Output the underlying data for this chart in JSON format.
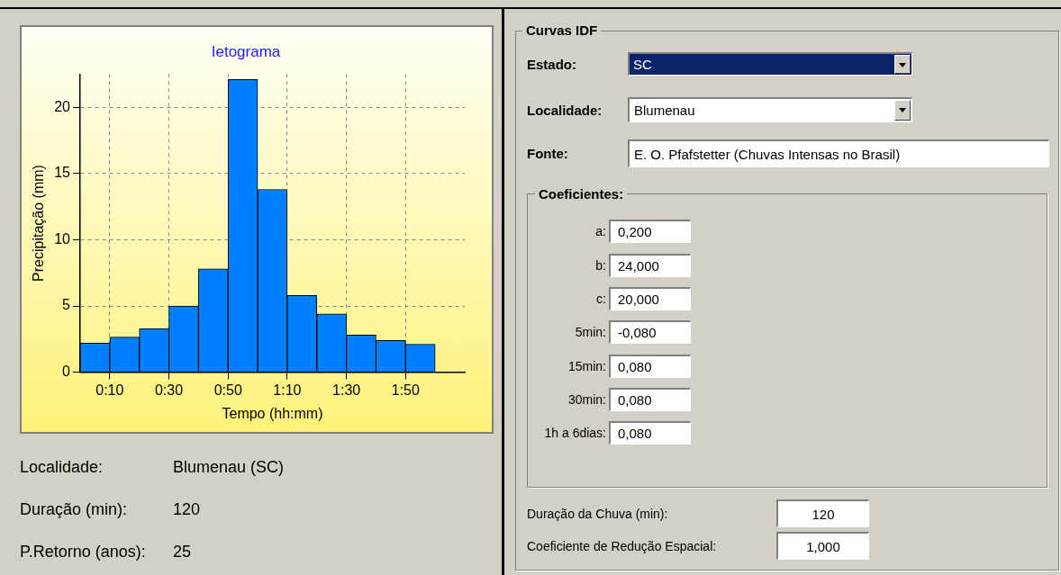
{
  "chart_data": [
    {
      "type": "histogram",
      "title": "Ietograma",
      "xlabel": "Tempo (hh:mm)",
      "ylabel": "Precipitação (mm)",
      "bins": [
        0,
        10,
        20,
        30,
        40,
        50,
        60,
        70,
        80,
        90,
        100,
        110,
        120,
        130
      ],
      "values": [
        2.2,
        2.65,
        3.3,
        5.0,
        7.8,
        22.1,
        13.8,
        5.8,
        4.4,
        2.8,
        2.4,
        2.1,
        0
      ],
      "color": "#0080ff",
      "xlim": [
        0,
        130
      ],
      "xticks": [
        {
          "value": 10,
          "label": "0:10"
        },
        {
          "value": 30,
          "label": "0:30"
        },
        {
          "value": 50,
          "label": "0:50"
        },
        {
          "value": 70,
          "label": "1:10"
        },
        {
          "value": 90,
          "label": "1:30"
        },
        {
          "value": 110,
          "label": "1:50"
        }
      ],
      "ylim": [
        0,
        22.5
      ],
      "yticks": [
        0,
        5,
        10,
        15,
        20
      ],
      "grid": true,
      "legend": false
    },
    {
      "type": "other",
      "annotations": [
        "Localidade:",
        "Blumenau (SC)",
        "Duração (min):",
        "120",
        "P.Retorno (anos):",
        "25"
      ]
    },
    {
      "type": "other",
      "title": "Curvas IDF",
      "annotations": [
        "Estado:",
        "SC",
        "Localidade:",
        "Blumenau",
        "Fonte:",
        "E. O. Pfafstetter (Chuvas Intensas no Brasil)",
        "Coeficientes:",
        "a:",
        "0,200",
        "b:",
        "24,000",
        "c:",
        "20,000",
        "5min:",
        "-0,080",
        "15min:",
        "0,080",
        "30min:",
        "0,080",
        "1h a 6dias:",
        "0,080",
        "Duração da Chuva (min):",
        "120",
        "Coeficiente de Redução Espacial:",
        "1,000"
      ]
    }
  ]
}
